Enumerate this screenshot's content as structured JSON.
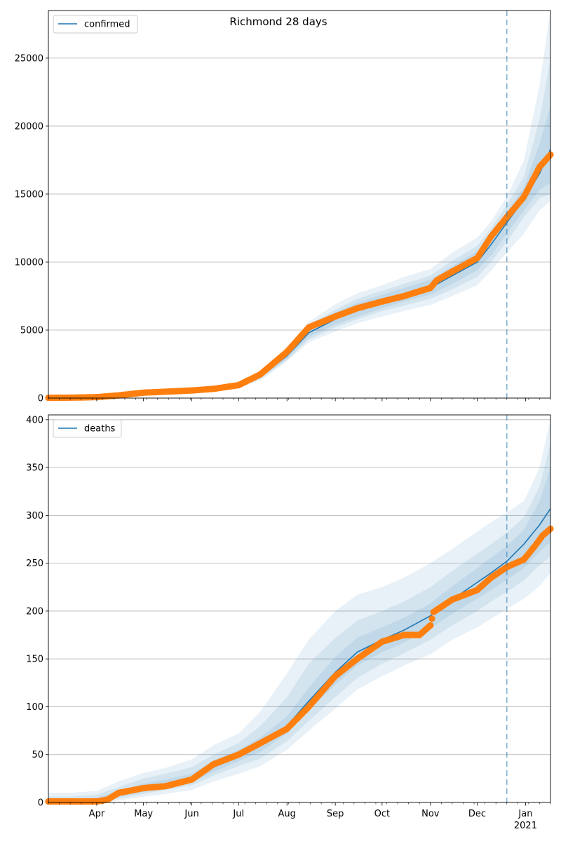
{
  "title": "Richmond 28 days",
  "chart_data": [
    {
      "type": "line",
      "legend": "confirmed",
      "legend_placement": "top-left",
      "grid": "y",
      "xlim": [
        "2020-03-01",
        "2021-01-17"
      ],
      "ylim": [
        0,
        28500
      ],
      "yticks": [
        0,
        5000,
        10000,
        15000,
        20000,
        25000
      ],
      "forecast_start": "2020-12-20",
      "series": [
        {
          "name": "confirmed",
          "x": [
            "2020-03-01",
            "2020-03-15",
            "2020-04-01",
            "2020-04-15",
            "2020-05-01",
            "2020-05-15",
            "2020-06-01",
            "2020-06-15",
            "2020-07-01",
            "2020-07-15",
            "2020-08-01",
            "2020-08-15",
            "2020-09-01",
            "2020-09-15",
            "2020-10-01",
            "2020-10-15",
            "2020-11-01",
            "2020-11-15",
            "2020-12-01",
            "2020-12-10",
            "2020-12-20",
            "2020-12-31",
            "2021-01-10",
            "2021-01-17"
          ],
          "y": [
            20,
            30,
            60,
            150,
            380,
            450,
            550,
            650,
            900,
            1600,
            3100,
            4800,
            5800,
            6500,
            7100,
            7600,
            8100,
            9000,
            10000,
            11300,
            12900,
            14600,
            16500,
            18300
          ]
        }
      ],
      "observed": {
        "x": [
          "2020-03-01",
          "2020-03-15",
          "2020-04-01",
          "2020-04-15",
          "2020-05-01",
          "2020-05-15",
          "2020-06-01",
          "2020-06-15",
          "2020-07-01",
          "2020-07-15",
          "2020-08-01",
          "2020-08-15",
          "2020-09-01",
          "2020-09-15",
          "2020-10-01",
          "2020-10-15",
          "2020-11-01",
          "2020-11-05",
          "2020-11-15",
          "2020-12-01",
          "2020-12-10",
          "2020-12-20",
          "2020-12-31",
          "2021-01-10",
          "2021-01-17"
        ],
        "y": [
          20,
          30,
          70,
          200,
          400,
          470,
          560,
          680,
          950,
          1750,
          3400,
          5200,
          6000,
          6600,
          7100,
          7500,
          8100,
          8650,
          9300,
          10300,
          11900,
          13300,
          14800,
          17000,
          17900
        ]
      },
      "bands": [
        {
          "lower": [
            0,
            0,
            20,
            90,
            290,
            350,
            430,
            510,
            720,
            1300,
            2700,
            4100,
            4900,
            5500,
            6000,
            6400,
            6850,
            7500,
            8300,
            9400,
            10700,
            12100,
            13800,
            14500
          ],
          "upper": [
            100,
            120,
            150,
            260,
            510,
            590,
            720,
            830,
            1150,
            2000,
            3600,
            5600,
            6900,
            7700,
            8300,
            8900,
            9500,
            10700,
            11800,
            13000,
            14800,
            17500,
            23000,
            28500
          ]
        },
        {
          "lower": [
            0,
            5,
            30,
            110,
            320,
            380,
            470,
            560,
            790,
            1400,
            2800,
            4300,
            5200,
            5800,
            6400,
            6800,
            7300,
            8000,
            8900,
            10000,
            11500,
            13300,
            14700,
            15000
          ],
          "upper": [
            70,
            80,
            110,
            220,
            460,
            530,
            660,
            760,
            1050,
            1850,
            3400,
            5400,
            6500,
            7300,
            7900,
            8400,
            9000,
            10100,
            11200,
            12500,
            14200,
            16300,
            20500,
            25000
          ]
        },
        {
          "lower": [
            5,
            10,
            40,
            120,
            340,
            400,
            500,
            590,
            830,
            1480,
            2900,
            4500,
            5400,
            6000,
            6600,
            7100,
            7600,
            8400,
            9400,
            10500,
            12100,
            13800,
            15300,
            15800
          ],
          "upper": [
            45,
            55,
            90,
            190,
            430,
            500,
            610,
            720,
            980,
            1750,
            3300,
            5200,
            6300,
            7000,
            7600,
            8100,
            8700,
            9700,
            10800,
            12000,
            13700,
            15500,
            18700,
            21500
          ]
        }
      ]
    },
    {
      "type": "line",
      "legend": "deaths",
      "legend_placement": "top-left",
      "grid": "y",
      "xlim": [
        "2020-03-01",
        "2021-01-17"
      ],
      "ylim": [
        0,
        405
      ],
      "yticks": [
        0,
        50,
        100,
        150,
        200,
        250,
        300,
        350,
        400
      ],
      "forecast_start": "2020-12-20",
      "series": [
        {
          "name": "deaths",
          "x": [
            "2020-03-01",
            "2020-03-15",
            "2020-04-01",
            "2020-04-15",
            "2020-05-01",
            "2020-05-15",
            "2020-06-01",
            "2020-06-15",
            "2020-07-01",
            "2020-07-15",
            "2020-08-01",
            "2020-08-15",
            "2020-09-01",
            "2020-09-15",
            "2020-10-01",
            "2020-10-15",
            "2020-11-01",
            "2020-11-15",
            "2020-12-01",
            "2020-12-10",
            "2020-12-20",
            "2020-12-31",
            "2021-01-10",
            "2021-01-17"
          ],
          "y": [
            1,
            1,
            2,
            9,
            15,
            19,
            25,
            37,
            48,
            60,
            80,
            106,
            136,
            157,
            170,
            180,
            195,
            212,
            230,
            240,
            252,
            270,
            290,
            307
          ]
        }
      ],
      "observed": {
        "x": [
          "2020-03-01",
          "2020-03-15",
          "2020-04-01",
          "2020-04-08",
          "2020-04-15",
          "2020-05-01",
          "2020-05-15",
          "2020-06-01",
          "2020-06-15",
          "2020-07-01",
          "2020-07-15",
          "2020-08-01",
          "2020-08-15",
          "2020-09-01",
          "2020-09-15",
          "2020-10-01",
          "2020-10-15",
          "2020-10-25",
          "2020-11-01",
          "2020-11-03",
          "2020-11-15",
          "2020-12-01",
          "2020-12-10",
          "2020-12-20",
          "2020-12-31",
          "2021-01-07",
          "2021-01-12",
          "2021-01-17"
        ],
        "y": [
          1,
          1,
          1,
          3,
          10,
          15,
          17,
          24,
          40,
          50,
          62,
          77,
          100,
          132,
          150,
          168,
          175,
          175,
          185,
          199,
          212,
          222,
          235,
          246,
          254,
          268,
          279,
          286
        ]
      },
      "bands": [
        {
          "lower": [
            0,
            0,
            0,
            2,
            6,
            9,
            13,
            22,
            30,
            38,
            55,
            75,
            98,
            118,
            132,
            143,
            155,
            170,
            183,
            192,
            202,
            213,
            226,
            240
          ],
          "upper": [
            10,
            10,
            12,
            22,
            31,
            36,
            45,
            60,
            72,
            95,
            135,
            170,
            200,
            217,
            225,
            235,
            250,
            265,
            283,
            293,
            303,
            315,
            350,
            400
          ]
        },
        {
          "lower": [
            0,
            0,
            0,
            4,
            9,
            13,
            18,
            28,
            38,
            46,
            64,
            85,
            110,
            130,
            145,
            156,
            170,
            185,
            200,
            210,
            220,
            232,
            248,
            257
          ],
          "upper": [
            6,
            6,
            8,
            16,
            25,
            30,
            37,
            50,
            62,
            80,
            110,
            145,
            172,
            190,
            200,
            210,
            225,
            242,
            260,
            270,
            282,
            298,
            330,
            375
          ]
        },
        {
          "lower": [
            0,
            0,
            1,
            6,
            11,
            16,
            21,
            32,
            43,
            53,
            72,
            96,
            123,
            143,
            157,
            167,
            182,
            197,
            213,
            222,
            233,
            245,
            262,
            272
          ],
          "upper": [
            3,
            3,
            5,
            12,
            20,
            24,
            30,
            44,
            55,
            68,
            90,
            120,
            152,
            172,
            183,
            193,
            208,
            226,
            245,
            256,
            268,
            285,
            315,
            350
          ]
        }
      ]
    }
  ],
  "x_axis": {
    "month_labels": [
      {
        "date": "2020-04-01",
        "text": "Apr"
      },
      {
        "date": "2020-05-01",
        "text": "May"
      },
      {
        "date": "2020-06-01",
        "text": "Jun"
      },
      {
        "date": "2020-07-01",
        "text": "Jul"
      },
      {
        "date": "2020-08-01",
        "text": "Aug"
      },
      {
        "date": "2020-09-01",
        "text": "Sep"
      },
      {
        "date": "2020-10-01",
        "text": "Oct"
      },
      {
        "date": "2020-11-01",
        "text": "Nov"
      },
      {
        "date": "2020-12-01",
        "text": "Dec"
      },
      {
        "date": "2021-01-01",
        "text": "Jan"
      }
    ],
    "year_label": {
      "date": "2021-01-01",
      "text": "2021"
    }
  },
  "colors": {
    "line": "#1f77b4",
    "observed": "#ff7f0e",
    "band": "#1f77b4",
    "grid": "#b0b0b0",
    "forecast_line": "#1f77b4"
  }
}
